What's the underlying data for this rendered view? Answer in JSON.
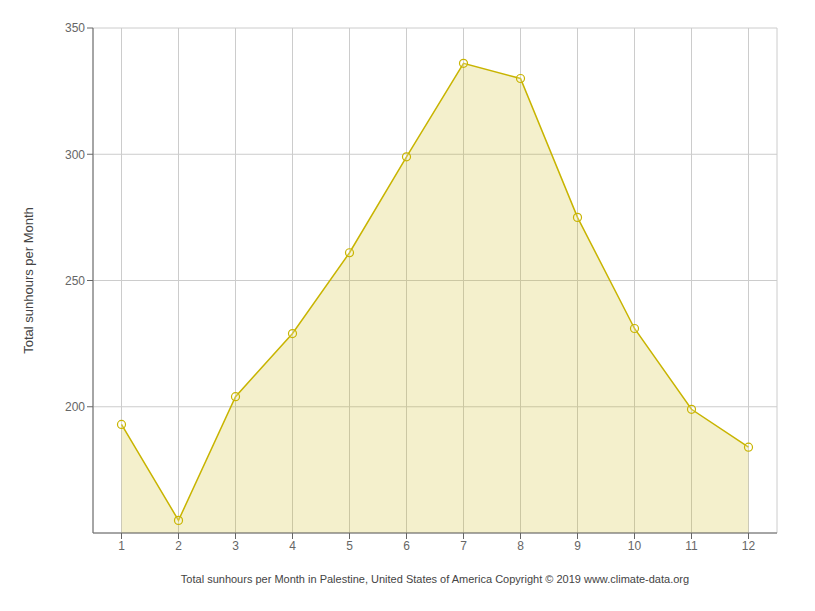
{
  "chart_data": {
    "type": "area",
    "x": [
      1,
      2,
      3,
      4,
      5,
      6,
      7,
      8,
      9,
      10,
      11,
      12
    ],
    "values": [
      193,
      155,
      204,
      229,
      261,
      299,
      336,
      330,
      275,
      231,
      199,
      184
    ],
    "color": "#C8B400",
    "marker": "o",
    "xlabel": "Total sunhours per Month in Palestine, United States of America Copyright © 2019 www.climate-data.org",
    "ylabel": "Total sunhours per Month",
    "xlim": [
      0.5,
      12.5
    ],
    "xticks": [
      1,
      2,
      3,
      4,
      5,
      6,
      7,
      8,
      9,
      10,
      11,
      12
    ],
    "ylim": [
      150,
      350
    ],
    "yticks": [
      200,
      250,
      300,
      350
    ],
    "grid": true
  }
}
